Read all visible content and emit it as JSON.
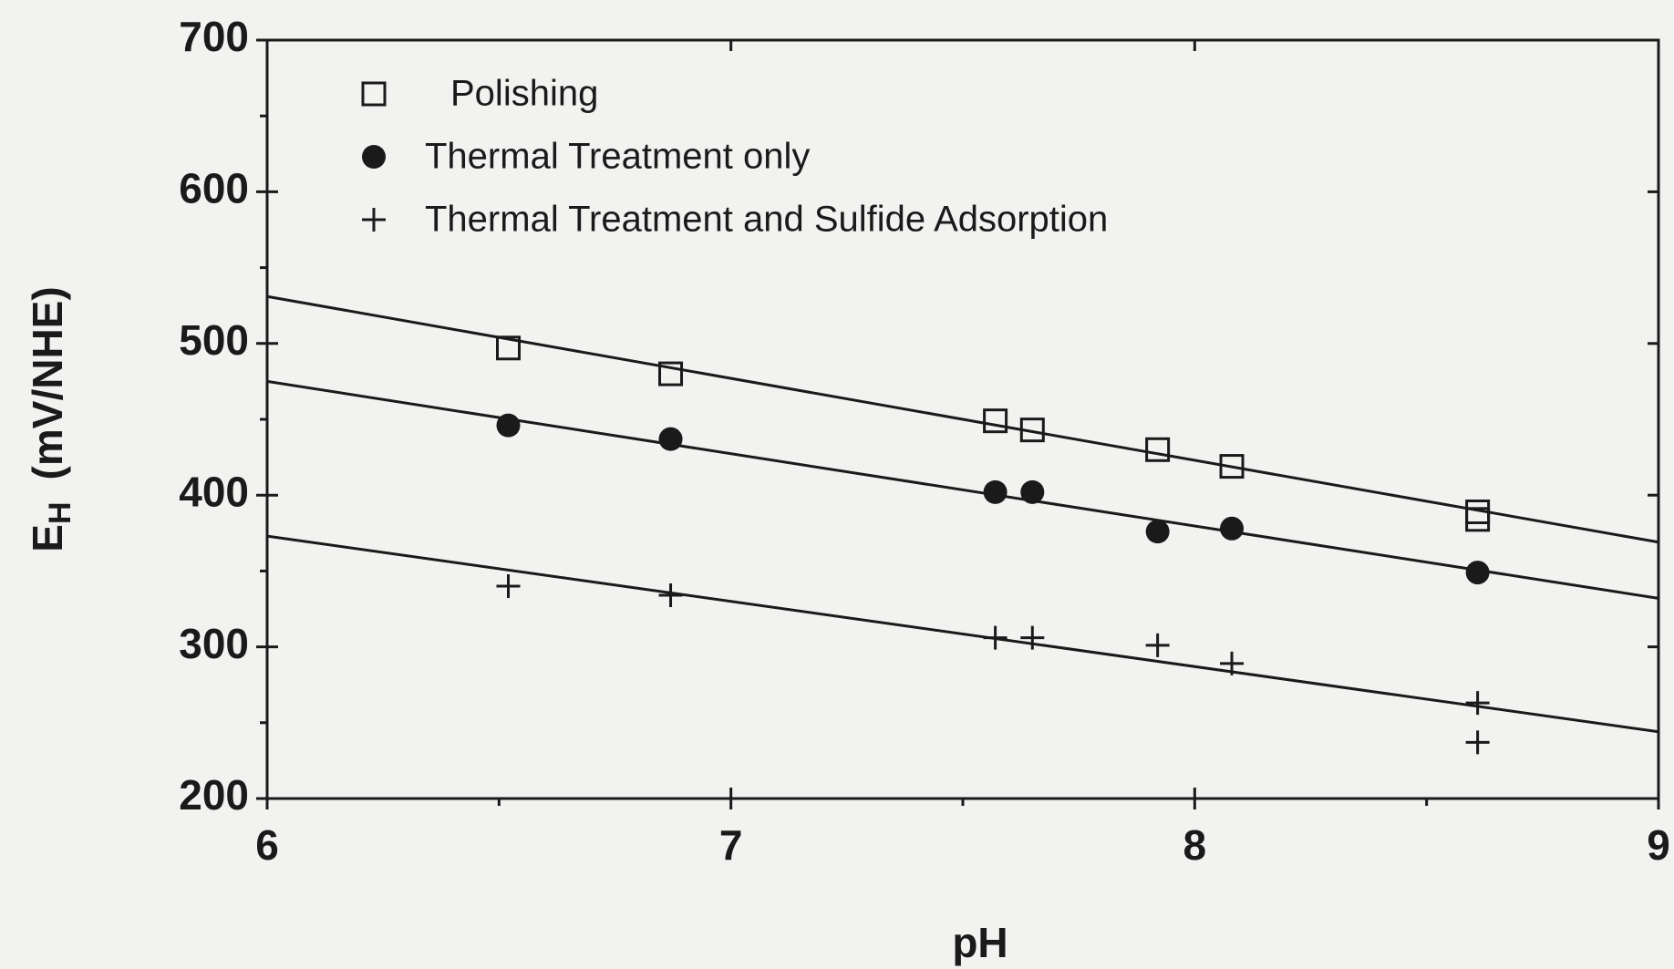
{
  "chart_data": {
    "type": "scatter",
    "xlabel": "pH",
    "ylabel": {
      "main": "E",
      "sub": "H",
      "unit": "(mV/NHE)"
    },
    "xlim": [
      6,
      9
    ],
    "xticks": [
      6,
      7,
      8,
      9
    ],
    "xminorticks": [
      6.5,
      7.5,
      8.5
    ],
    "ylim": [
      200,
      700
    ],
    "yticks": [
      200,
      300,
      400,
      500,
      600,
      700
    ],
    "yminorticks": [
      250,
      350,
      450,
      550,
      650
    ],
    "legend": "upper left",
    "series": [
      {
        "name": "Polishing",
        "marker": "square",
        "color": "#1a1a1a",
        "x": [
          6.52,
          6.87,
          7.57,
          7.65,
          7.92,
          8.08,
          8.61,
          8.61
        ],
        "values": [
          497,
          480,
          449,
          443,
          430,
          419,
          389,
          384
        ],
        "fit_x": [
          6,
          9
        ],
        "fit_values": [
          531,
          369
        ]
      },
      {
        "name": "Thermal Treatment only",
        "marker": "circle",
        "color": "#1a1a1a",
        "x": [
          6.52,
          6.87,
          7.57,
          7.65,
          7.92,
          8.08,
          8.61
        ],
        "values": [
          446,
          437,
          402,
          402,
          376,
          378,
          349
        ],
        "fit_x": [
          6,
          9
        ],
        "fit_values": [
          475,
          332
        ]
      },
      {
        "name": "Thermal Treatment and Sulfide Adsorption",
        "marker": "plus",
        "color": "#1a1a1a",
        "x": [
          6.52,
          6.87,
          7.57,
          7.65,
          7.92,
          8.08,
          8.61,
          8.61
        ],
        "values": [
          340,
          334,
          306,
          306,
          301,
          289,
          263,
          237
        ],
        "fit_x": [
          6,
          9
        ],
        "fit_values": [
          373,
          244
        ]
      }
    ]
  }
}
